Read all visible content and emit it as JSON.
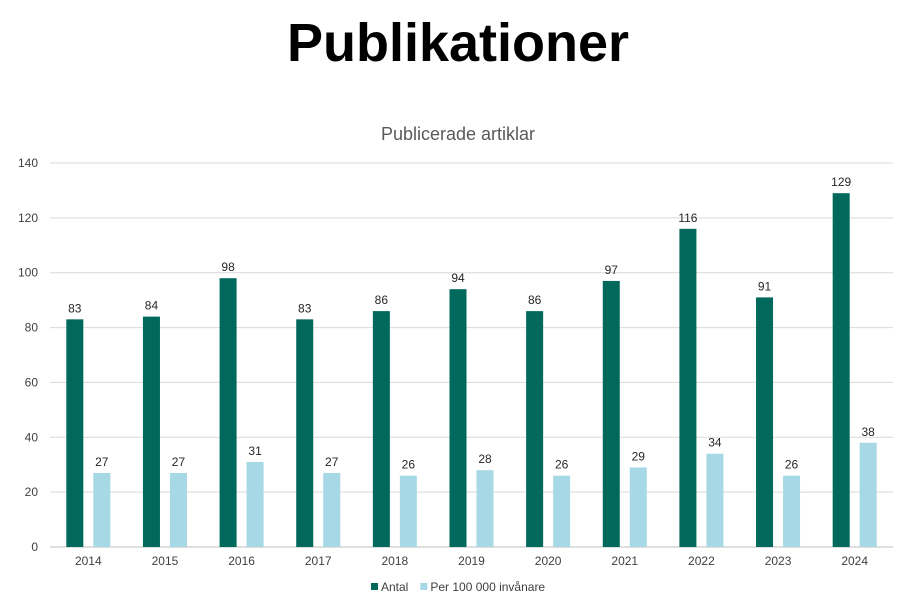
{
  "page": {
    "title": "Publikationer"
  },
  "chart_data": {
    "type": "bar",
    "title": "Publicerade artiklar",
    "xlabel": "",
    "ylabel": "",
    "categories": [
      "2014",
      "2015",
      "2016",
      "2017",
      "2018",
      "2019",
      "2020",
      "2021",
      "2022",
      "2023",
      "2024"
    ],
    "series": [
      {
        "name": "Antal",
        "color": "#00695c",
        "values": [
          83,
          84,
          98,
          83,
          86,
          94,
          86,
          97,
          116,
          91,
          129
        ]
      },
      {
        "name": "Per 100 000 invånare",
        "color": "#a6d8e6",
        "values": [
          27,
          27,
          31,
          27,
          26,
          28,
          26,
          29,
          34,
          26,
          38
        ]
      }
    ],
    "ylim": [
      0,
      140
    ],
    "yticks": [
      0,
      20,
      40,
      60,
      80,
      100,
      120,
      140
    ],
    "grid": true,
    "legend": "bottom",
    "colors": {
      "gridline": "#d9d9d9",
      "axis": "#bfbfbf"
    }
  }
}
